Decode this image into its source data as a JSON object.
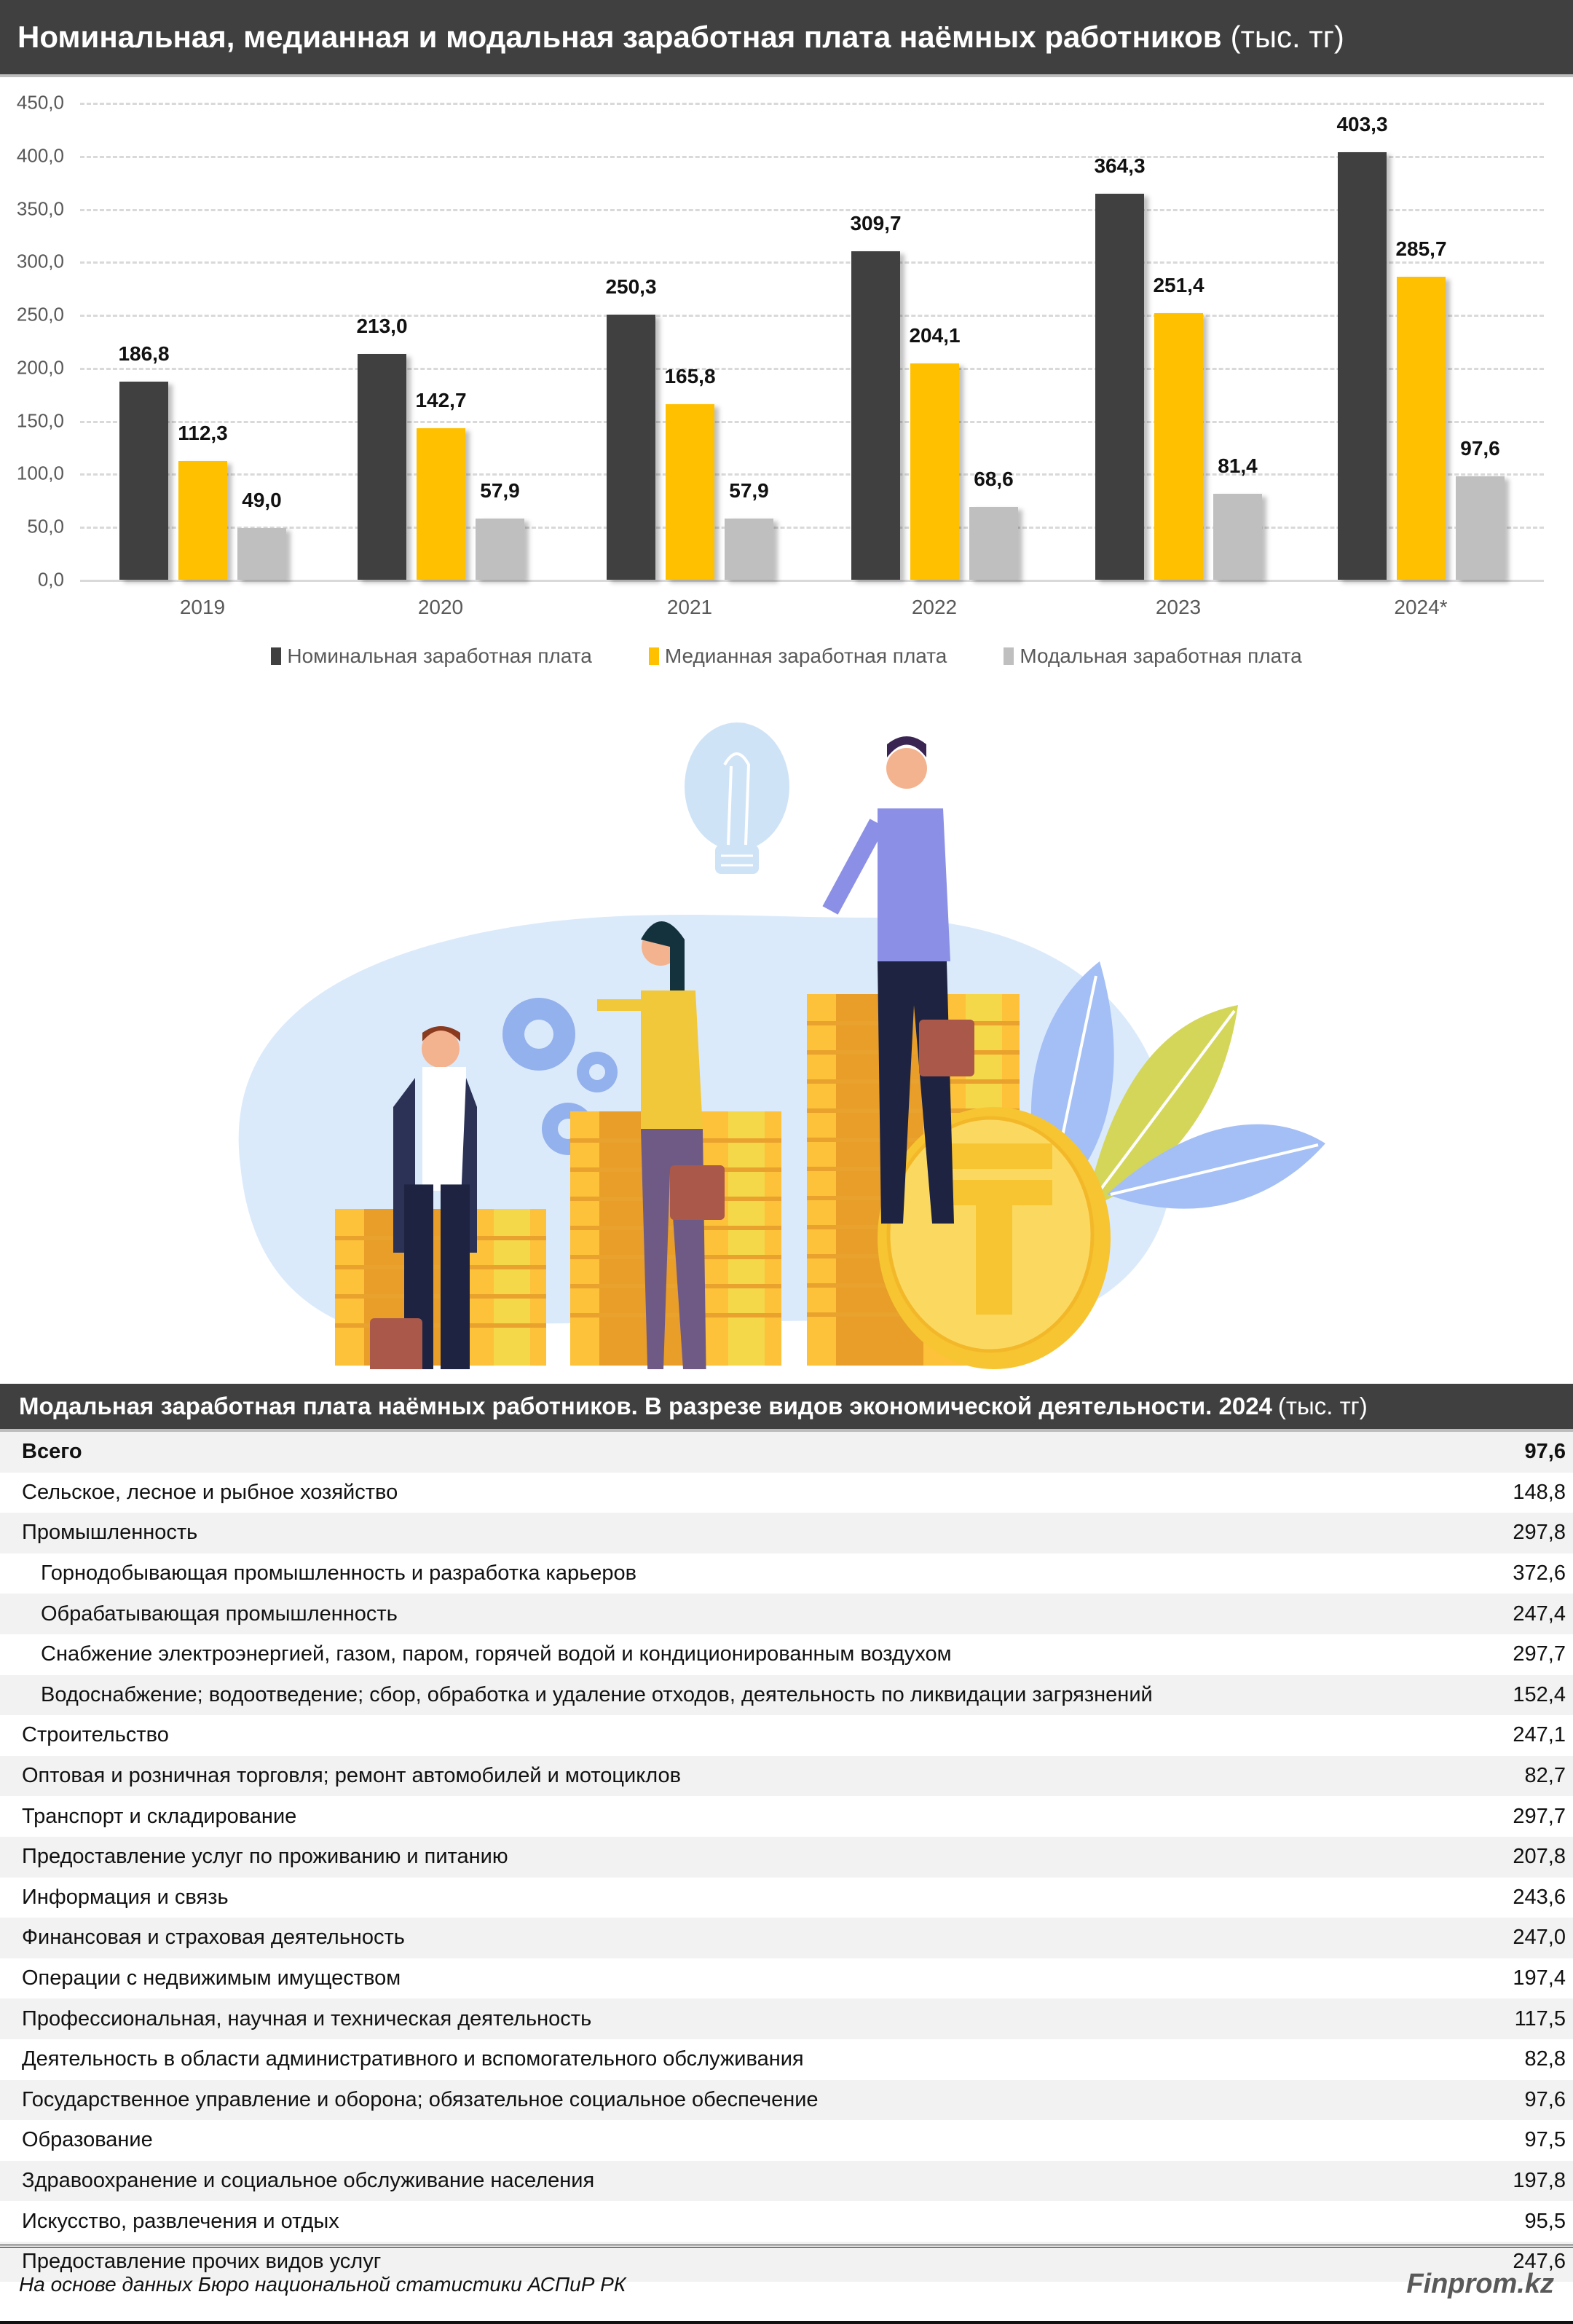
{
  "header": {
    "title": "Номинальная, медианная и модальная заработная плата наёмных работников",
    "unit": "(тыс. тг)"
  },
  "colors": {
    "nominal": "#404040",
    "median": "#FFC000",
    "modal": "#BFBFBF",
    "header_bg": "#404040"
  },
  "chart_data": {
    "type": "bar",
    "title": "Номинальная, медианная и модальная заработная плата наёмных работников (тыс. тг)",
    "categories": [
      "2019",
      "2020",
      "2021",
      "2022",
      "2023",
      "2024*"
    ],
    "series": [
      {
        "name": "Номинальная заработная плата",
        "values": [
          186.8,
          213.0,
          250.3,
          309.7,
          364.3,
          403.3
        ]
      },
      {
        "name": "Медианная заработная плата",
        "values": [
          112.3,
          142.7,
          165.8,
          204.1,
          251.4,
          285.7
        ]
      },
      {
        "name": "Модальная заработная плата",
        "values": [
          49.0,
          57.9,
          57.9,
          68.6,
          81.4,
          97.6
        ]
      }
    ],
    "value_labels": [
      [
        "186,8",
        "213,0",
        "250,3",
        "309,7",
        "364,3",
        "403,3"
      ],
      [
        "112,3",
        "142,7",
        "165,8",
        "204,1",
        "251,4",
        "285,7"
      ],
      [
        "49,0",
        "57,9",
        "57,9",
        "68,6",
        "81,4",
        "97,6"
      ]
    ],
    "yticks": [
      "0,0",
      "50,0",
      "100,0",
      "150,0",
      "200,0",
      "250,0",
      "300,0",
      "350,0",
      "400,0",
      "450,0"
    ],
    "ylim": [
      0,
      450
    ],
    "xlabel": "",
    "ylabel": "",
    "grid": true,
    "legend_position": "bottom"
  },
  "legend": [
    {
      "label": "Номинальная заработная плата"
    },
    {
      "label": "Медианная заработная плата"
    },
    {
      "label": "Модальная заработная плата"
    }
  ],
  "table": {
    "title": "Модальная заработная плата наёмных работников. В разрезе видов экономической деятельности. 2024",
    "unit": "(тыс. тг)",
    "rows": [
      {
        "label": "Всего",
        "value": "97,6",
        "bold": true,
        "indent": false
      },
      {
        "label": "Сельское, лесное и рыбное хозяйство",
        "value": "148,8",
        "bold": false,
        "indent": false
      },
      {
        "label": "Промышленность",
        "value": "297,8",
        "bold": false,
        "indent": false
      },
      {
        "label": "Горнодобывающая промышленность и разработка карьеров",
        "value": "372,6",
        "bold": false,
        "indent": true
      },
      {
        "label": "Обрабатывающая промышленность",
        "value": "247,4",
        "bold": false,
        "indent": true
      },
      {
        "label": "Снабжение электроэнергией, газом, паром, горячей водой и кондиционированным воздухом",
        "value": "297,7",
        "bold": false,
        "indent": true
      },
      {
        "label": "Водоснабжение; водоотведение; сбор, обработка и удаление отходов, деятельность по ликвидации загрязнений",
        "value": "152,4",
        "bold": false,
        "indent": true
      },
      {
        "label": "Строительство",
        "value": "247,1",
        "bold": false,
        "indent": false
      },
      {
        "label": "Оптовая и розничная торговля; ремонт автомобилей и мотоциклов",
        "value": "82,7",
        "bold": false,
        "indent": false
      },
      {
        "label": "Транспорт и складирование",
        "value": "297,7",
        "bold": false,
        "indent": false
      },
      {
        "label": "Предоставление услуг по проживанию и питанию",
        "value": "207,8",
        "bold": false,
        "indent": false
      },
      {
        "label": "Информация и связь",
        "value": "243,6",
        "bold": false,
        "indent": false
      },
      {
        "label": "Финансовая и страховая деятельность",
        "value": "247,0",
        "bold": false,
        "indent": false
      },
      {
        "label": "Операции с недвижимым имуществом",
        "value": "197,4",
        "bold": false,
        "indent": false
      },
      {
        "label": "Профессиональная, научная и техническая деятельность",
        "value": "117,5",
        "bold": false,
        "indent": false
      },
      {
        "label": "Деятельность в области административного и вспомогательного обслуживания",
        "value": "82,8",
        "bold": false,
        "indent": false
      },
      {
        "label": "Государственное управление и оборона; обязательное социальное обеспечение",
        "value": "97,6",
        "bold": false,
        "indent": false
      },
      {
        "label": "Образование",
        "value": "97,5",
        "bold": false,
        "indent": false
      },
      {
        "label": "Здравоохранение и социальное обслуживание населения",
        "value": "197,8",
        "bold": false,
        "indent": false
      },
      {
        "label": "Искусство, развлечения и отдых",
        "value": "95,5",
        "bold": false,
        "indent": false
      },
      {
        "label": "Предоставление прочих видов услуг",
        "value": "247,6",
        "bold": false,
        "indent": false
      }
    ]
  },
  "footer": {
    "source": "На основе данных Бюро национальной статистики АСПиР РК",
    "brand": "Finprom.kz"
  },
  "illustration": {
    "icons": [
      "people-on-coin-stacks-icon",
      "lightbulb-icon",
      "gears-icon",
      "tenge-coin-icon",
      "leaves-icon"
    ],
    "coin_symbol": "₸"
  }
}
